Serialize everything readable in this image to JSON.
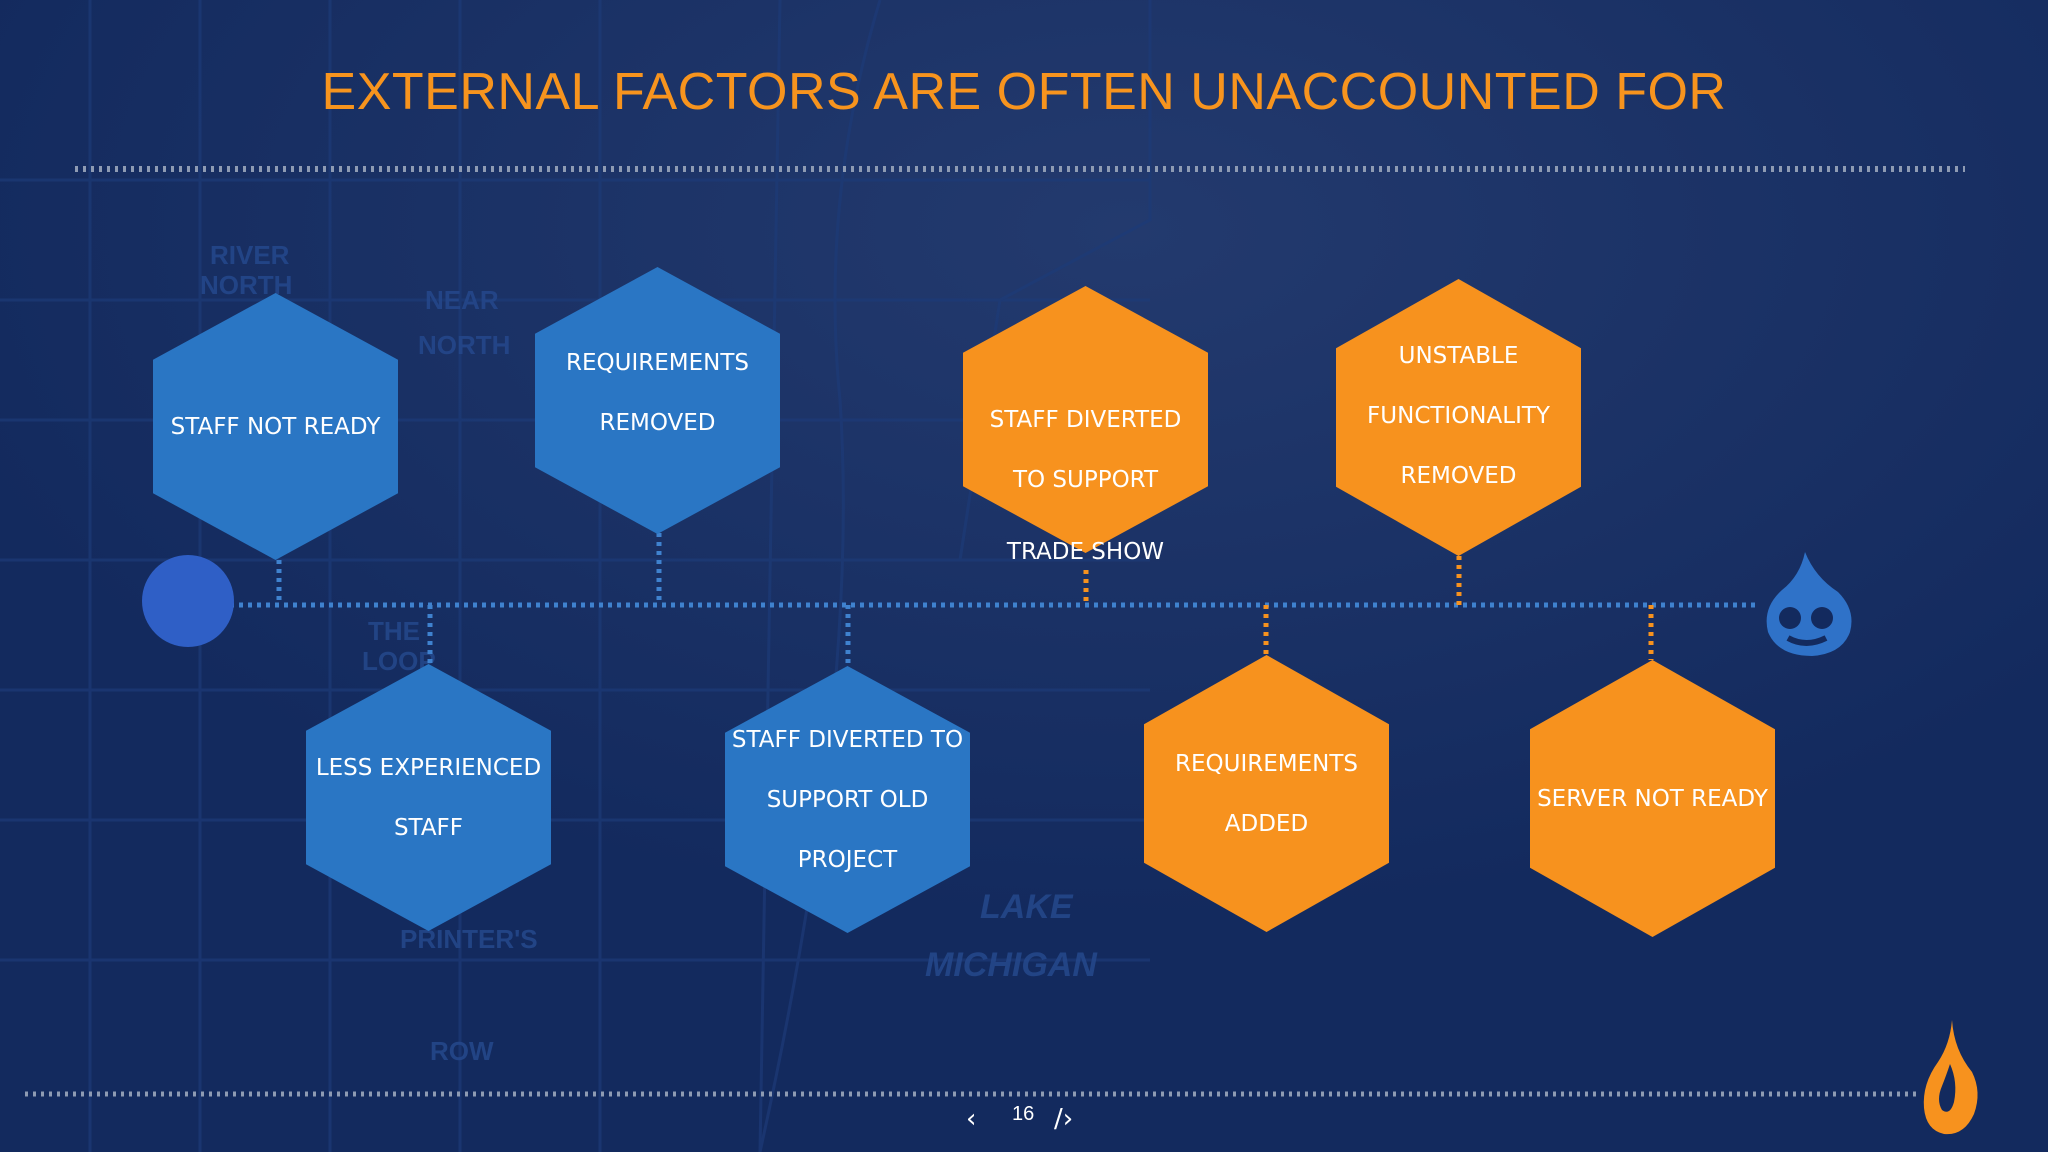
{
  "slide": {
    "title": "EXTERNAL FACTORS ARE OFTEN UNACCOUNTED FOR",
    "page_number": "16",
    "map_labels": [
      "RIVER",
      "NORTH",
      "NEAR",
      "NORTH",
      "THE",
      "LOOP",
      "LAKE",
      "MICHIGAN",
      "ROW",
      "PRINTER'S"
    ]
  },
  "colors": {
    "background": "#132a5e",
    "title": "#f7941e",
    "blue_hex": "#2a76c4",
    "orange_hex": "#f7921e",
    "timeline": "#3f82cf",
    "dots": "#8e9bb3"
  },
  "icons": {
    "start": "blue-circle-icon",
    "end": "drupal-drop-icon",
    "corner": "orange-flame-logo-icon",
    "prev": "chevron-left-icon",
    "next": "code-chevron-right-icon"
  },
  "factors": {
    "staff_not_ready": "STAFF NOT READY",
    "requirements_removed": "REQUIREMENTS\nREMOVED",
    "staff_diverted_trade_show": "STAFF DIVERTED\nTO SUPPORT",
    "staff_diverted_trade_show_tail": "TRADE SHOW",
    "unstable_functionality": "UNSTABLE\nFUNCTIONALITY\nREMOVED",
    "less_experienced_staff": "LESS EXPERIENCED\nSTAFF",
    "staff_diverted_old_project": "STAFF DIVERTED TO\nSUPPORT OLD\nPROJECT",
    "requirements_added": "REQUIREMENTS\nADDED",
    "server_not_ready": "SERVER NOT READY"
  }
}
